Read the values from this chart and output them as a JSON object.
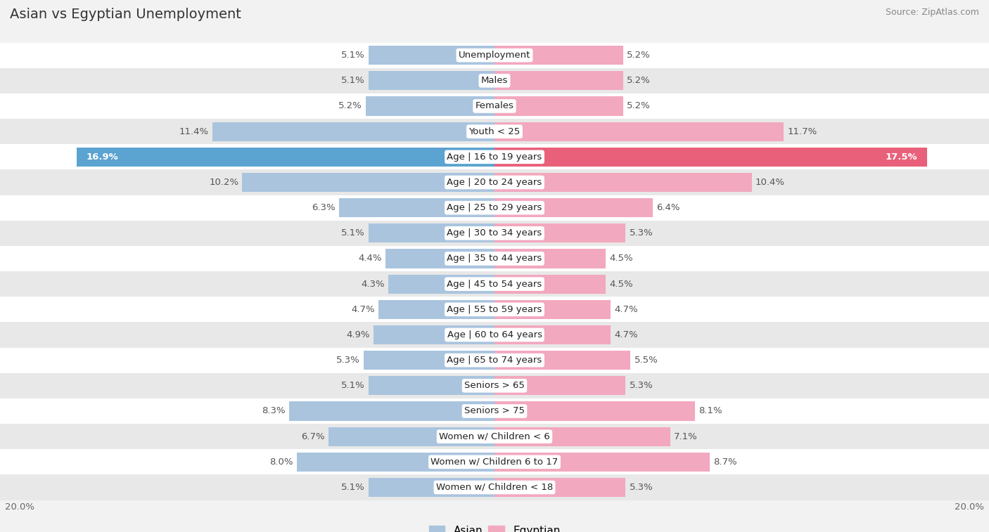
{
  "title": "Asian vs Egyptian Unemployment",
  "source": "Source: ZipAtlas.com",
  "categories": [
    "Unemployment",
    "Males",
    "Females",
    "Youth < 25",
    "Age | 16 to 19 years",
    "Age | 20 to 24 years",
    "Age | 25 to 29 years",
    "Age | 30 to 34 years",
    "Age | 35 to 44 years",
    "Age | 45 to 54 years",
    "Age | 55 to 59 years",
    "Age | 60 to 64 years",
    "Age | 65 to 74 years",
    "Seniors > 65",
    "Seniors > 75",
    "Women w/ Children < 6",
    "Women w/ Children 6 to 17",
    "Women w/ Children < 18"
  ],
  "asian_values": [
    5.1,
    5.1,
    5.2,
    11.4,
    16.9,
    10.2,
    6.3,
    5.1,
    4.4,
    4.3,
    4.7,
    4.9,
    5.3,
    5.1,
    8.3,
    6.7,
    8.0,
    5.1
  ],
  "egyptian_values": [
    5.2,
    5.2,
    5.2,
    11.7,
    17.5,
    10.4,
    6.4,
    5.3,
    4.5,
    4.5,
    4.7,
    4.7,
    5.5,
    5.3,
    8.1,
    7.1,
    8.7,
    5.3
  ],
  "asian_color": "#aac4de",
  "egyptian_color": "#f2a8be",
  "asian_color_highlight": "#5ba3d0",
  "egyptian_color_highlight": "#e8607a",
  "axis_max": 20.0,
  "background_color": "#f2f2f2",
  "row_bg_even": "#ffffff",
  "row_bg_odd": "#e8e8e8",
  "label_fontsize": 9.5,
  "title_fontsize": 14,
  "source_fontsize": 9,
  "value_fontsize": 9.5,
  "legend_fontsize": 11
}
